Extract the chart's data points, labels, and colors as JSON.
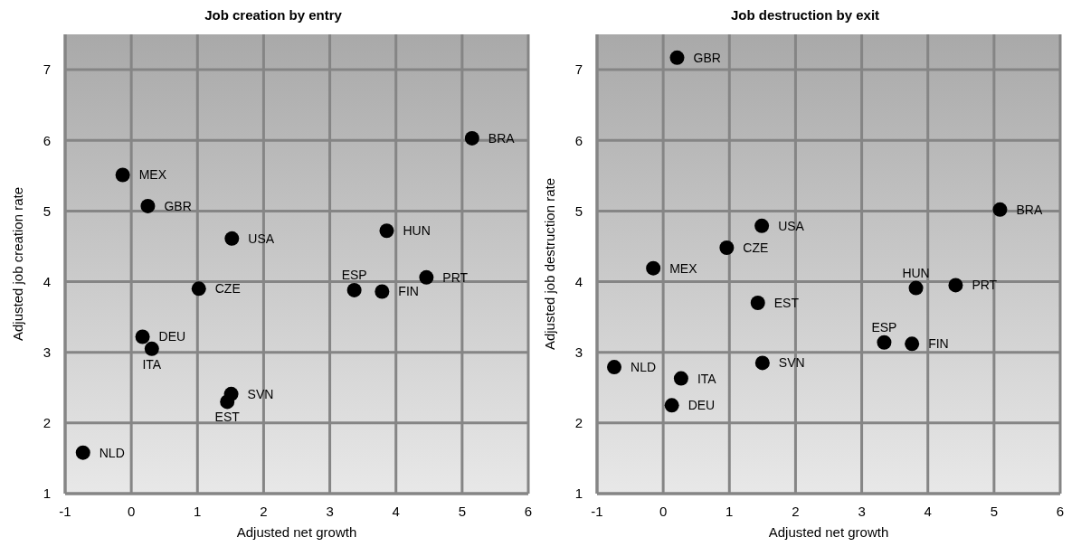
{
  "chart_data": [
    {
      "type": "scatter",
      "title": "Job creation by entry",
      "xlabel": "Adjusted net growth",
      "ylabel": "Adjusted job creation rate",
      "series": [
        {
          "color": "#000000",
          "x": [
            5.15,
            -0.13,
            0.25,
            1.52,
            3.86,
            4.46,
            1.02,
            3.37,
            3.79,
            0.17,
            0.31,
            1.51,
            1.45,
            -0.73
          ],
          "values": [
            6.03,
            5.51,
            5.07,
            4.61,
            4.72,
            4.06,
            3.9,
            3.88,
            3.86,
            3.22,
            3.05,
            2.41,
            2.3,
            1.58
          ]
        }
      ],
      "annotations": [
        {
          "text": "BRA",
          "x": 5.15,
          "y": 6.03
        },
        {
          "text": "MEX",
          "x": -0.13,
          "y": 5.51
        },
        {
          "text": "GBR",
          "x": 0.25,
          "y": 5.07
        },
        {
          "text": "USA",
          "x": 1.52,
          "y": 4.61
        },
        {
          "text": "HUN",
          "x": 3.86,
          "y": 4.72
        },
        {
          "text": "PRT",
          "x": 4.46,
          "y": 4.06
        },
        {
          "text": "CZE",
          "x": 1.02,
          "y": 3.9
        },
        {
          "text": "ESP",
          "x": 3.37,
          "y": 3.88
        },
        {
          "text": "FIN",
          "x": 3.79,
          "y": 3.86
        },
        {
          "text": "DEU",
          "x": 0.17,
          "y": 3.22
        },
        {
          "text": "ITA",
          "x": 0.31,
          "y": 3.05
        },
        {
          "text": "SVN",
          "x": 1.51,
          "y": 2.41
        },
        {
          "text": "EST",
          "x": 1.45,
          "y": 2.3
        },
        {
          "text": "NLD",
          "x": -0.73,
          "y": 1.58
        }
      ],
      "xlim": [
        -1,
        6
      ],
      "xticks": [
        -1,
        0,
        1,
        2,
        3,
        4,
        5,
        6
      ],
      "ylim": [
        1,
        7.5
      ],
      "yticks": [
        1,
        2,
        3,
        4,
        5,
        6,
        7
      ],
      "grid": true,
      "marker": "circle",
      "legend": false
    },
    {
      "type": "scatter",
      "title": "Job destruction by exit",
      "xlabel": "Adjusted net growth",
      "ylabel": "Adjusted job destruction rate",
      "series": [
        {
          "color": "#000000",
          "x": [
            0.21,
            5.09,
            1.49,
            0.96,
            -0.15,
            3.82,
            4.42,
            1.43,
            3.34,
            3.76,
            -0.74,
            0.27,
            1.5,
            0.13
          ],
          "values": [
            7.17,
            5.02,
            4.79,
            4.48,
            4.19,
            3.91,
            3.95,
            3.7,
            3.14,
            3.12,
            2.79,
            2.63,
            2.85,
            2.25
          ]
        }
      ],
      "annotations": [
        {
          "text": "GBR",
          "x": 0.21,
          "y": 7.17
        },
        {
          "text": "BRA",
          "x": 5.09,
          "y": 5.02
        },
        {
          "text": "USA",
          "x": 1.49,
          "y": 4.79
        },
        {
          "text": "CZE",
          "x": 0.96,
          "y": 4.48
        },
        {
          "text": "MEX",
          "x": -0.15,
          "y": 4.19
        },
        {
          "text": "HUN",
          "x": 3.82,
          "y": 3.91
        },
        {
          "text": "PRT",
          "x": 4.42,
          "y": 3.95
        },
        {
          "text": "EST",
          "x": 1.43,
          "y": 3.7
        },
        {
          "text": "ESP",
          "x": 3.34,
          "y": 3.14
        },
        {
          "text": "FIN",
          "x": 3.76,
          "y": 3.12
        },
        {
          "text": "NLD",
          "x": -0.74,
          "y": 2.79
        },
        {
          "text": "ITA",
          "x": 0.27,
          "y": 2.63
        },
        {
          "text": "SVN",
          "x": 1.5,
          "y": 2.85
        },
        {
          "text": "DEU",
          "x": 0.13,
          "y": 2.25
        }
      ],
      "xlim": [
        -1,
        6
      ],
      "xticks": [
        -1,
        0,
        1,
        2,
        3,
        4,
        5,
        6
      ],
      "ylim": [
        1,
        7.5
      ],
      "yticks": [
        1,
        2,
        3,
        4,
        5,
        6,
        7
      ],
      "grid": true,
      "marker": "circle",
      "legend": false
    }
  ]
}
